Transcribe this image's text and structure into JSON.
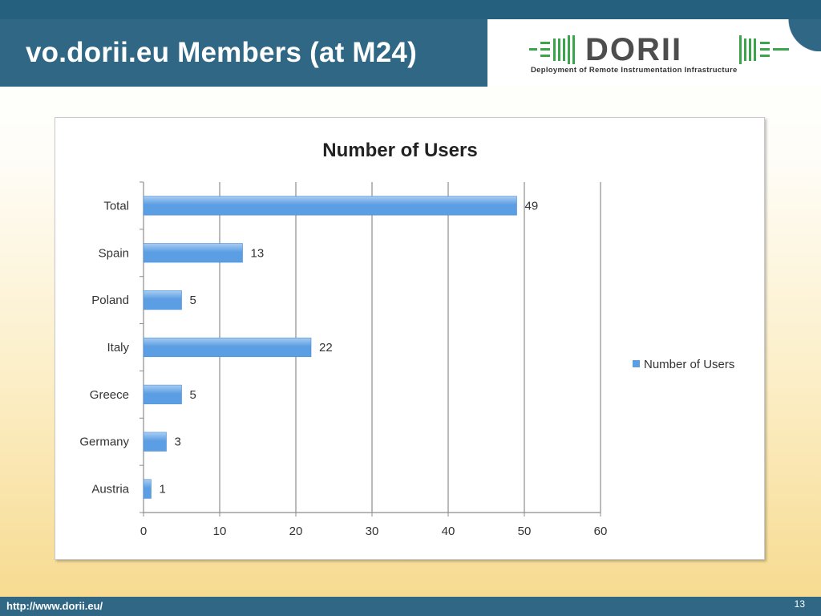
{
  "slide": {
    "title": "vo.dorii.eu Members (at M24)",
    "footer_url": "http://www.dorii.eu/",
    "page_number": "13"
  },
  "logo": {
    "word": "DORII",
    "tagline": "Deployment of Remote Instrumentation Infrastructure"
  },
  "chart_data": {
    "type": "bar",
    "orientation": "horizontal",
    "title": "Number of Users",
    "categories": [
      "Total",
      "Spain",
      "Poland",
      "Italy",
      "Greece",
      "Germany",
      "Austria"
    ],
    "series": [
      {
        "name": "Number of Users",
        "values": [
          49,
          13,
          5,
          22,
          5,
          3,
          1
        ]
      }
    ],
    "xlim": [
      0,
      60
    ],
    "xticks": [
      0,
      10,
      20,
      30,
      40,
      50,
      60
    ],
    "grid": "vertical",
    "legend": "right",
    "data_labels": true,
    "colors": {
      "bar": "#5b9ee3",
      "bar_light": "#a9cdf3"
    }
  }
}
